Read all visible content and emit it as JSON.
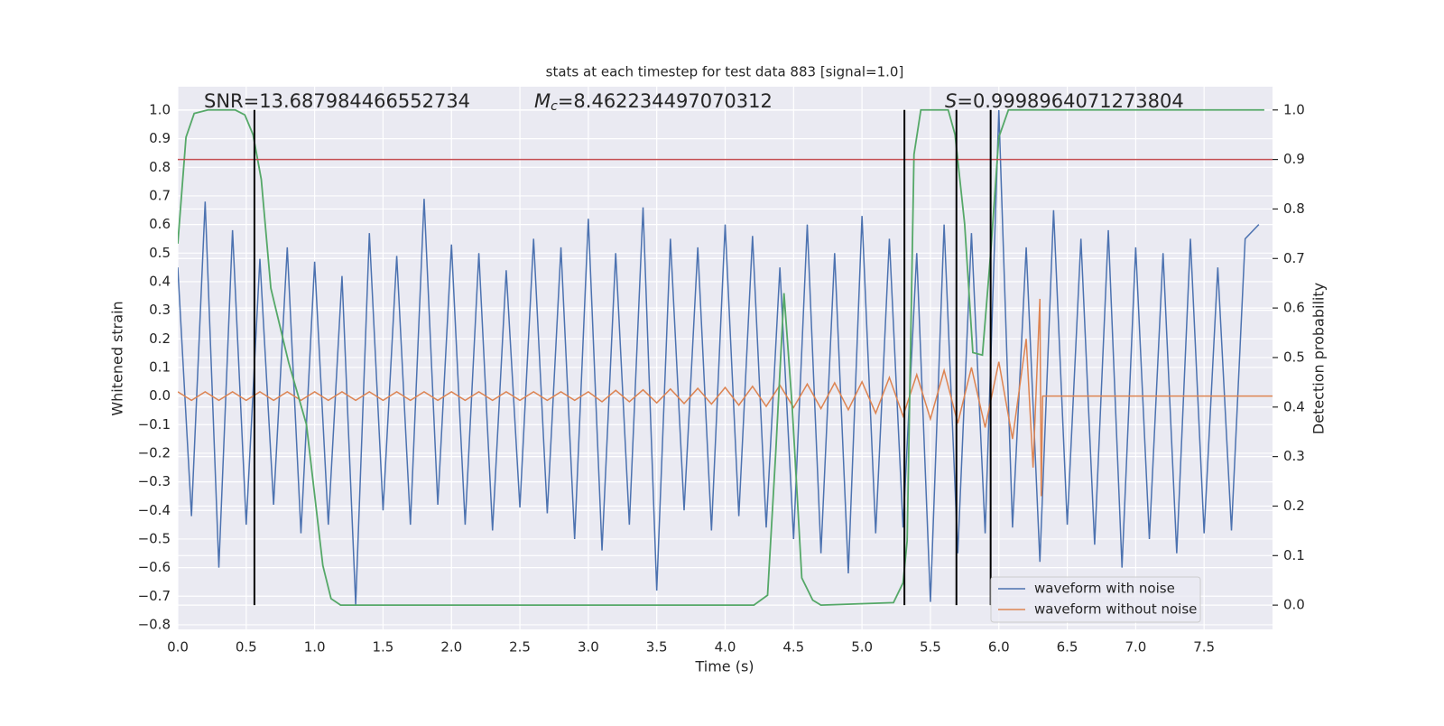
{
  "chart_data": {
    "type": "line",
    "title": "stats at each timestep for test data 883 [signal=1.0]",
    "xlabel": "Time (s)",
    "ylabel": "Whitened strain",
    "y2label": "Detection probability",
    "xlim": [
      0,
      8.0
    ],
    "ylim": [
      -0.816,
      1.082
    ],
    "y2lim": [
      -0.049,
      1.047
    ],
    "xticks": [
      {
        "value": 0,
        "label": "0.0"
      },
      0.5,
      {
        "value": 1,
        "label": "1.0"
      },
      1.5,
      {
        "value": 2,
        "label": "2.0"
      },
      2.5,
      {
        "value": 3,
        "label": "3.0"
      },
      3.5,
      {
        "value": 4,
        "label": "4.0"
      },
      4.5,
      {
        "value": 5,
        "label": "5.0"
      },
      5.5,
      {
        "value": 6,
        "label": "6.0"
      },
      6.5,
      {
        "value": 7,
        "label": "7.0"
      },
      7.5
    ],
    "yticks": [
      {
        "value": -0.8,
        "label": "−0.8"
      },
      {
        "value": -0.7,
        "label": "−0.7"
      },
      {
        "value": -0.6,
        "label": "−0.6"
      },
      {
        "value": -0.5,
        "label": "−0.5"
      },
      {
        "value": -0.4,
        "label": "−0.4"
      },
      {
        "value": -0.3,
        "label": "−0.3"
      },
      {
        "value": -0.2,
        "label": "−0.2"
      },
      {
        "value": -0.1,
        "label": "−0.1"
      },
      {
        "value": 0,
        "label": "0.0"
      },
      0.1,
      0.2,
      0.3,
      0.4,
      0.5,
      0.6,
      0.7,
      0.8,
      0.9,
      {
        "value": 1,
        "label": "1.0"
      }
    ],
    "y2ticks": [
      {
        "value": 0,
        "label": "0.0"
      },
      0.1,
      0.2,
      0.3,
      0.4,
      0.5,
      0.6,
      0.7,
      0.8,
      0.9,
      {
        "value": 1,
        "label": "1.0"
      }
    ],
    "grid": true,
    "legend": "lower right",
    "annotations": [
      {
        "text": "SNR=13.687984466552734"
      },
      {
        "symbol": "M",
        "sub": "c",
        "text": "=8.462234497070312"
      },
      {
        "symbol": "S",
        "text": "=0.9998964071273804"
      }
    ],
    "series": [
      {
        "name": "waveform with noise",
        "color": "#4c72b0",
        "x": [
          0,
          0.1,
          0.2,
          0.3,
          0.4,
          0.5,
          0.6,
          0.7,
          0.8,
          0.9,
          1,
          1.1,
          1.2,
          1.3,
          1.4,
          1.5,
          1.6,
          1.7,
          1.8,
          1.9,
          2,
          2.1,
          2.2,
          2.3,
          2.4,
          2.5,
          2.6,
          2.7,
          2.8,
          2.9,
          3,
          3.1,
          3.2,
          3.3,
          3.4,
          3.5,
          3.6,
          3.7,
          3.8,
          3.9,
          4,
          4.1,
          4.2,
          4.3,
          4.4,
          4.5,
          4.6,
          4.7,
          4.8,
          4.9,
          5,
          5.1,
          5.2,
          5.3,
          5.4,
          5.5,
          5.6,
          5.7,
          5.8,
          5.9,
          6,
          6.1,
          6.2,
          6.3,
          6.4,
          6.5,
          6.6,
          6.7,
          6.8,
          6.9,
          7,
          7.1,
          7.2,
          7.3,
          7.4,
          7.5,
          7.6,
          7.7,
          7.8,
          7.9
        ],
        "values": [
          0.45,
          -0.42,
          0.68,
          -0.6,
          0.58,
          -0.45,
          0.48,
          -0.38,
          0.52,
          -0.48,
          0.47,
          -0.45,
          0.42,
          -0.73,
          0.57,
          -0.4,
          0.49,
          -0.45,
          0.69,
          -0.38,
          0.53,
          -0.45,
          0.5,
          -0.47,
          0.44,
          -0.39,
          0.55,
          -0.41,
          0.52,
          -0.5,
          0.62,
          -0.54,
          0.5,
          -0.45,
          0.66,
          -0.68,
          0.55,
          -0.4,
          0.52,
          -0.47,
          0.6,
          -0.42,
          0.56,
          -0.46,
          0.45,
          -0.5,
          0.6,
          -0.55,
          0.5,
          -0.62,
          0.63,
          -0.48,
          0.55,
          -0.46,
          0.5,
          -0.72,
          0.6,
          -0.55,
          0.57,
          -0.48,
          1.0,
          -0.46,
          0.52,
          -0.58,
          0.65,
          -0.45,
          0.55,
          -0.52,
          0.58,
          -0.6,
          0.52,
          -0.5,
          0.5,
          -0.55,
          0.55,
          -0.48,
          0.45,
          -0.47,
          0.55,
          0.6
        ]
      },
      {
        "name": "waveform without noise",
        "color": "#dd8452",
        "x": [
          0,
          0.1,
          0.2,
          0.3,
          0.4,
          0.5,
          0.6,
          0.7,
          0.8,
          0.9,
          1,
          1.1,
          1.2,
          1.3,
          1.4,
          1.5,
          1.6,
          1.7,
          1.8,
          1.9,
          2,
          2.1,
          2.2,
          2.3,
          2.4,
          2.5,
          2.6,
          2.7,
          2.8,
          2.9,
          3,
          3.1,
          3.2,
          3.3,
          3.4,
          3.5,
          3.6,
          3.7,
          3.8,
          3.9,
          4,
          4.1,
          4.2,
          4.3,
          4.4,
          4.5,
          4.6,
          4.7,
          4.8,
          4.9,
          5,
          5.1,
          5.2,
          5.3,
          5.4,
          5.5,
          5.6,
          5.7,
          5.8,
          5.9,
          6,
          6.1,
          6.2,
          6.25,
          6.3,
          6.31,
          6.32,
          8.0
        ],
        "values": [
          0.015,
          -0.015,
          0.015,
          -0.015,
          0.015,
          -0.015,
          0.015,
          -0.015,
          0.015,
          -0.015,
          0.015,
          -0.015,
          0.015,
          -0.015,
          0.015,
          -0.015,
          0.015,
          -0.015,
          0.015,
          -0.015,
          0.015,
          -0.015,
          0.015,
          -0.015,
          0.015,
          -0.015,
          0.015,
          -0.015,
          0.015,
          -0.015,
          0.015,
          -0.02,
          0.02,
          -0.02,
          0.022,
          -0.024,
          0.025,
          -0.026,
          0.027,
          -0.028,
          0.03,
          -0.032,
          0.034,
          -0.036,
          0.038,
          -0.04,
          0.042,
          -0.044,
          0.046,
          -0.048,
          0.05,
          -0.06,
          0.065,
          -0.07,
          0.075,
          -0.08,
          0.09,
          -0.095,
          0.1,
          -0.11,
          0.12,
          -0.15,
          0.2,
          -0.25,
          0.34,
          -0.35,
          0,
          0
        ]
      }
    ],
    "detection": {
      "color": "#55a868",
      "axis": "y2",
      "x": [
        0,
        0.06,
        0.12,
        0.22,
        0.42,
        0.49,
        0.55,
        0.61,
        0.68,
        0.81,
        0.94,
        1.06,
        1.12,
        1.19,
        4.21,
        4.31,
        4.37,
        4.43,
        4.49,
        4.56,
        4.64,
        4.7,
        5.23,
        5.3,
        5.33,
        5.38,
        5.43,
        5.63,
        5.68,
        5.75,
        5.81,
        5.88,
        5.94,
        6.0,
        6.07,
        7.94
      ],
      "values": [
        0.73,
        0.945,
        0.993,
        1.0,
        1.0,
        0.99,
        0.95,
        0.86,
        0.64,
        0.49,
        0.365,
        0.08,
        0.013,
        0,
        0,
        0.02,
        0.31,
        0.63,
        0.4,
        0.055,
        0.01,
        0,
        0.005,
        0.045,
        0.13,
        0.91,
        1.0,
        1.0,
        0.95,
        0.77,
        0.51,
        0.505,
        0.71,
        0.945,
        1.0,
        1.0
      ]
    },
    "threshold": {
      "value": 0.9,
      "color": "#c44e52",
      "axis": "y2"
    },
    "vlines": {
      "x": [
        0.56,
        5.31,
        5.69,
        5.94
      ],
      "ymin": 0,
      "ymax": 1,
      "color": "#000000",
      "axis": "y2"
    }
  }
}
